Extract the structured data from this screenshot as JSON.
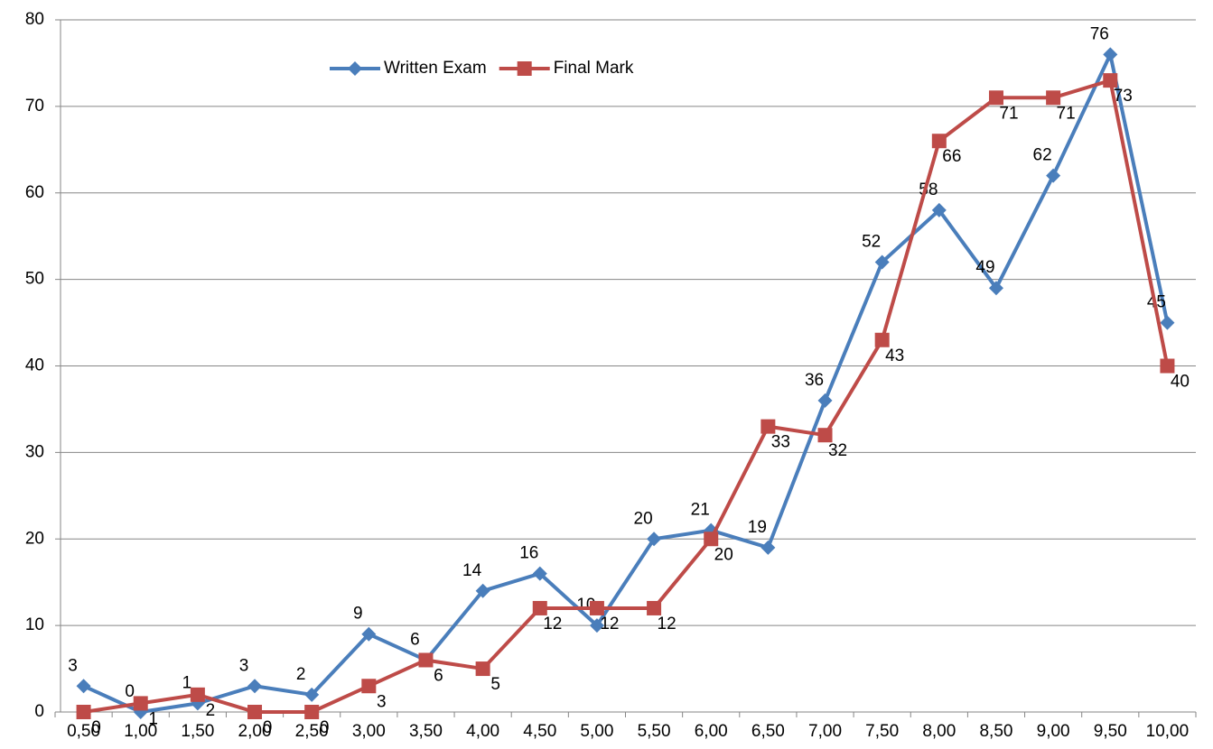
{
  "chart_data": {
    "type": "line",
    "categories": [
      "0,50",
      "1,00",
      "1,50",
      "2,00",
      "2,50",
      "3,00",
      "3,50",
      "4,00",
      "4,50",
      "5,00",
      "5,50",
      "6,00",
      "6,50",
      "7,00",
      "7,50",
      "8,00",
      "8,50",
      "9,00",
      "9,50",
      "10,00"
    ],
    "series": [
      {
        "name": "Written Exam",
        "color": "#4a7ebb",
        "marker": "diamond",
        "values": [
          3,
          0,
          1,
          3,
          2,
          9,
          6,
          14,
          16,
          10,
          20,
          21,
          19,
          36,
          52,
          58,
          49,
          62,
          76,
          45
        ]
      },
      {
        "name": "Final Mark",
        "color": "#be4b48",
        "marker": "square",
        "values": [
          0,
          1,
          2,
          0,
          0,
          3,
          6,
          5,
          12,
          12,
          12,
          20,
          33,
          32,
          43,
          66,
          71,
          71,
          73,
          40
        ]
      }
    ],
    "ylim": [
      0,
      80
    ],
    "yticks": [
      0,
      10,
      20,
      30,
      40,
      50,
      60,
      70,
      80
    ],
    "grid": true,
    "legend": "top"
  }
}
